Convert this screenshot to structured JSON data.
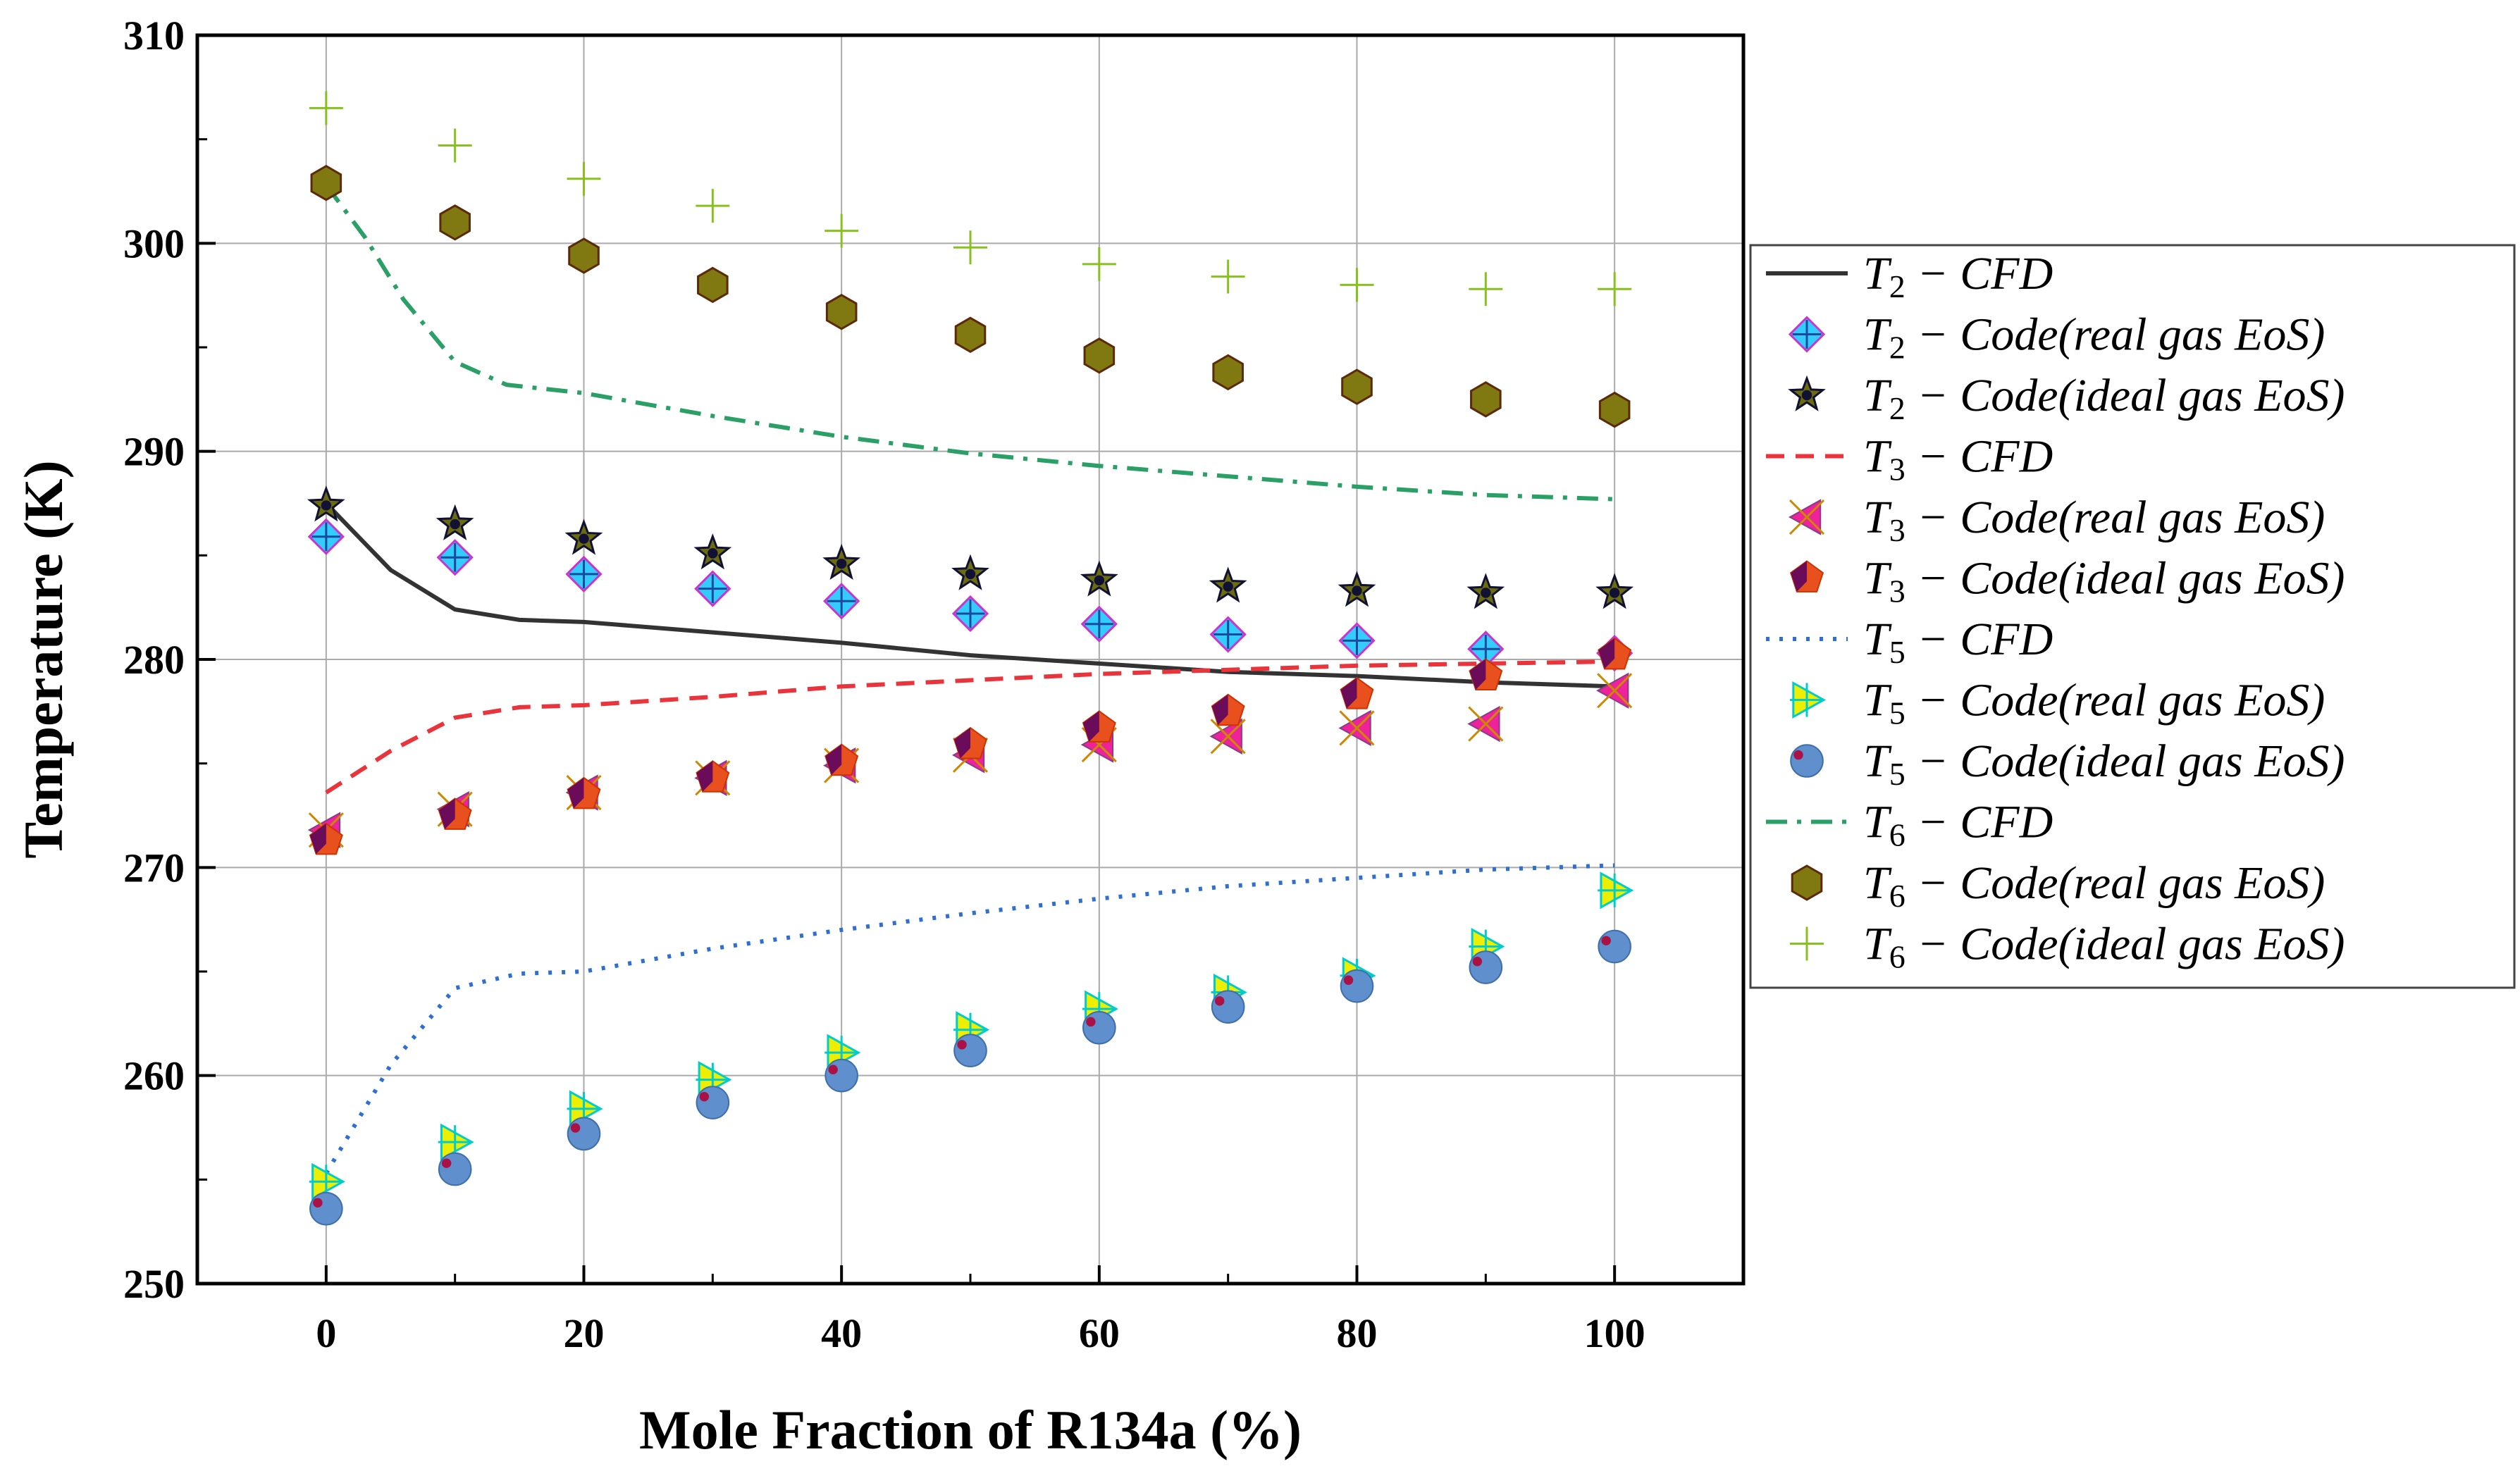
{
  "chart_data": {
    "type": "scatter",
    "xlabel": "Mole Fraction of R134a (%)",
    "ylabel": "Temperature (K)",
    "xlim": [
      -10,
      110
    ],
    "ylim": [
      250,
      310
    ],
    "xticks": [
      0,
      20,
      40,
      60,
      80,
      100
    ],
    "yticks": [
      250,
      260,
      270,
      280,
      290,
      300,
      310
    ],
    "grid": true,
    "legend_position": "right",
    "series": [
      {
        "name": "T2 − CFD",
        "sub": "2",
        "label": " − CFD",
        "kind": "line",
        "style": "solid",
        "color": "#333333",
        "x": [
          0,
          5,
          10,
          15,
          20,
          30,
          40,
          50,
          60,
          70,
          80,
          90,
          100
        ],
        "y": [
          287.5,
          284.3,
          282.4,
          281.9,
          281.8,
          281.3,
          280.8,
          280.2,
          279.8,
          279.4,
          279.2,
          278.9,
          278.7
        ]
      },
      {
        "name": "T2 − Code(real gas EoS)",
        "sub": "2",
        "label": " − Code(real gas EoS)",
        "kind": "marker",
        "marker": "diamond-plus",
        "color": "#33ccff",
        "edge": "#cc33cc",
        "x": [
          0,
          10,
          20,
          30,
          40,
          50,
          60,
          70,
          80,
          90,
          100
        ],
        "y": [
          285.9,
          284.9,
          284.1,
          283.4,
          282.8,
          282.2,
          281.7,
          281.2,
          280.9,
          280.5,
          280.3
        ]
      },
      {
        "name": "T2 − Code(ideal gas EoS)",
        "sub": "2",
        "label": " − Code(ideal gas EoS)",
        "kind": "marker",
        "marker": "star",
        "color": "#6b6b10",
        "edge": "#111133",
        "x": [
          0,
          10,
          20,
          30,
          40,
          50,
          60,
          70,
          80,
          90,
          100
        ],
        "y": [
          287.4,
          286.5,
          285.8,
          285.1,
          284.6,
          284.1,
          283.8,
          283.5,
          283.3,
          283.2,
          283.2
        ]
      },
      {
        "name": "T3 − CFD",
        "sub": "3",
        "label": " − CFD",
        "kind": "line",
        "style": "dashed",
        "color": "#e8343a",
        "x": [
          0,
          5,
          10,
          15,
          20,
          30,
          40,
          50,
          60,
          70,
          80,
          90,
          100
        ],
        "y": [
          273.6,
          275.6,
          277.2,
          277.7,
          277.8,
          278.2,
          278.7,
          279.0,
          279.3,
          279.5,
          279.7,
          279.8,
          279.9
        ]
      },
      {
        "name": "T3 − Code(real gas EoS)",
        "sub": "3",
        "label": " − Code(real gas EoS)",
        "kind": "marker",
        "marker": "tri-left-x",
        "color": "#ee2299",
        "edge": "#cc8800",
        "x": [
          0,
          10,
          20,
          30,
          40,
          50,
          60,
          70,
          80,
          90,
          100
        ],
        "y": [
          271.8,
          272.8,
          273.6,
          274.3,
          274.9,
          275.4,
          275.9,
          276.3,
          276.7,
          276.9,
          278.5
        ]
      },
      {
        "name": "T3 − Code(ideal gas EoS)",
        "sub": "3",
        "label": " − Code(ideal gas EoS)",
        "kind": "marker",
        "marker": "pentagon",
        "color": "#e8501e",
        "edge": "#550066",
        "x": [
          0,
          10,
          20,
          30,
          40,
          50,
          60,
          70,
          80,
          90,
          100
        ],
        "y": [
          271.3,
          272.5,
          273.5,
          274.3,
          275.1,
          275.9,
          276.7,
          277.5,
          278.3,
          279.2,
          280.2
        ]
      },
      {
        "name": "T5 − CFD",
        "sub": "5",
        "label": " − CFD",
        "kind": "line",
        "style": "dotted",
        "color": "#2e6fd1",
        "x": [
          0,
          5,
          10,
          15,
          20,
          30,
          40,
          50,
          60,
          70,
          80,
          90,
          100
        ],
        "y": [
          255.3,
          260.5,
          264.2,
          264.9,
          265.0,
          266.1,
          267.0,
          267.8,
          268.5,
          269.1,
          269.5,
          269.9,
          270.1
        ]
      },
      {
        "name": "T5 − Code(real gas EoS)",
        "sub": "5",
        "label": " − Code(real gas EoS)",
        "kind": "marker",
        "marker": "tri-right-plus",
        "color": "#eeee00",
        "edge": "#00cccc",
        "x": [
          0,
          10,
          20,
          30,
          40,
          50,
          60,
          70,
          80,
          90,
          100
        ],
        "y": [
          254.9,
          256.8,
          258.4,
          259.8,
          261.1,
          262.2,
          263.2,
          264.0,
          264.8,
          266.2,
          268.9
        ]
      },
      {
        "name": "T5 − Code(ideal gas EoS)",
        "sub": "5",
        "label": " − Code(ideal gas EoS)",
        "kind": "marker",
        "marker": "circle-dot",
        "color": "#5f8fcc",
        "edge": "#aa1144",
        "x": [
          0,
          10,
          20,
          30,
          40,
          50,
          60,
          70,
          80,
          90,
          100
        ],
        "y": [
          253.6,
          255.5,
          257.2,
          258.7,
          260.0,
          261.2,
          262.3,
          263.3,
          264.3,
          265.2,
          266.2
        ]
      },
      {
        "name": "T6 − CFD",
        "sub": "6",
        "label": " − CFD",
        "kind": "line",
        "style": "dashdot",
        "color": "#2aa066",
        "x": [
          0,
          3,
          6,
          10,
          14,
          20,
          30,
          40,
          50,
          60,
          70,
          80,
          90,
          100
        ],
        "y": [
          302.8,
          300.3,
          297.3,
          294.3,
          293.2,
          292.8,
          291.7,
          290.7,
          289.9,
          289.3,
          288.8,
          288.3,
          287.9,
          287.7
        ]
      },
      {
        "name": "T6 − Code(real gas EoS)",
        "sub": "6",
        "label": " − Code(real gas EoS)",
        "kind": "marker",
        "marker": "hexagon",
        "color": "#807810",
        "edge": "#5a2a0a",
        "x": [
          0,
          10,
          20,
          30,
          40,
          50,
          60,
          70,
          80,
          90,
          100
        ],
        "y": [
          302.9,
          301.0,
          299.4,
          298.0,
          296.7,
          295.6,
          294.6,
          293.8,
          293.1,
          292.5,
          292.0
        ]
      },
      {
        "name": "T6 − Code(ideal gas EoS)",
        "sub": "6",
        "label": " − Code(ideal gas EoS)",
        "kind": "marker",
        "marker": "plus",
        "color": "#88c020",
        "edge": "#88c020",
        "x": [
          0,
          10,
          20,
          30,
          40,
          50,
          60,
          70,
          80,
          90,
          100
        ],
        "y": [
          306.5,
          304.7,
          303.1,
          301.8,
          300.6,
          299.8,
          299.0,
          298.4,
          298.0,
          297.8,
          297.8
        ]
      }
    ]
  }
}
